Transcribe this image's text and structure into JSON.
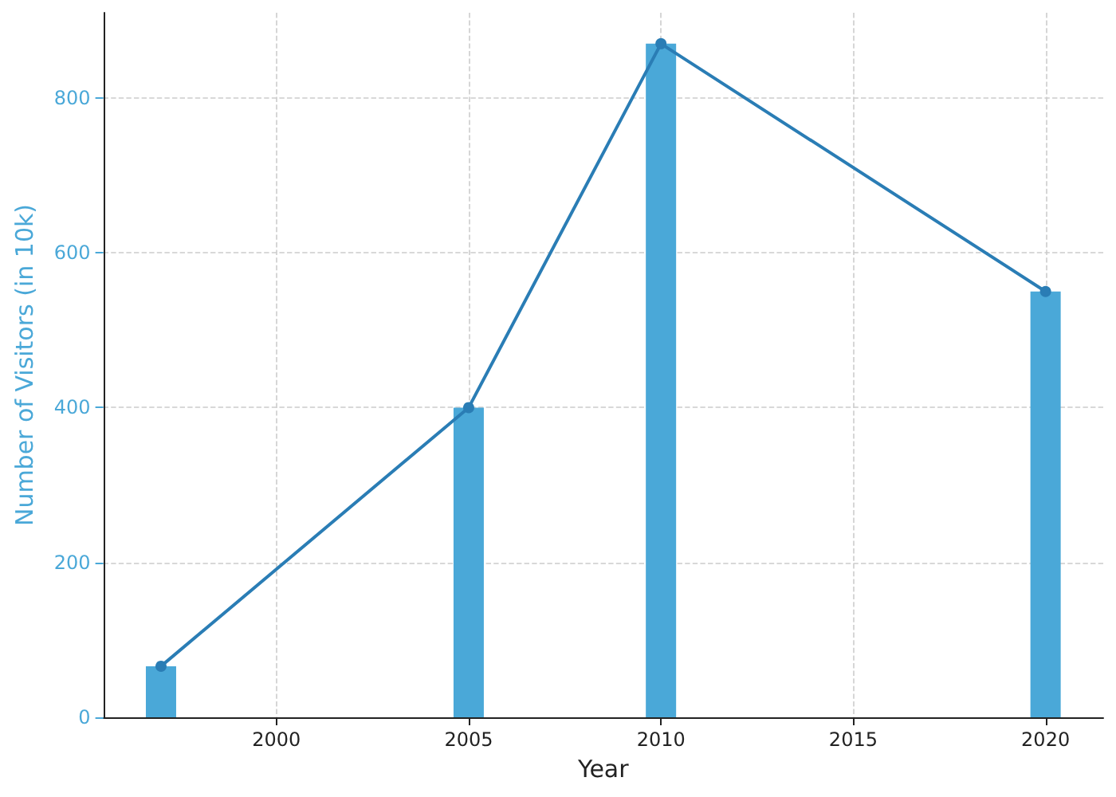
{
  "chart_data": {
    "type": "bar",
    "xlabel": "Year",
    "ylabel": "Number of Visitors (in 10k)",
    "x": [
      1997,
      2005,
      2010,
      2020
    ],
    "xlim": [
      1995.5,
      2021.5
    ],
    "xticks": [
      2000,
      2005,
      2010,
      2015,
      2020
    ],
    "ylim": [
      0,
      910
    ],
    "yticks": [
      0,
      200,
      400,
      600,
      800
    ],
    "grid": true,
    "marker": "circle",
    "series": [
      {
        "color": "#4aa8d8",
        "values": [
          66,
          400,
          870,
          550
        ]
      },
      {
        "type": "line",
        "color": "#2a7db5",
        "values": [
          66,
          400,
          870,
          550
        ]
      }
    ]
  }
}
